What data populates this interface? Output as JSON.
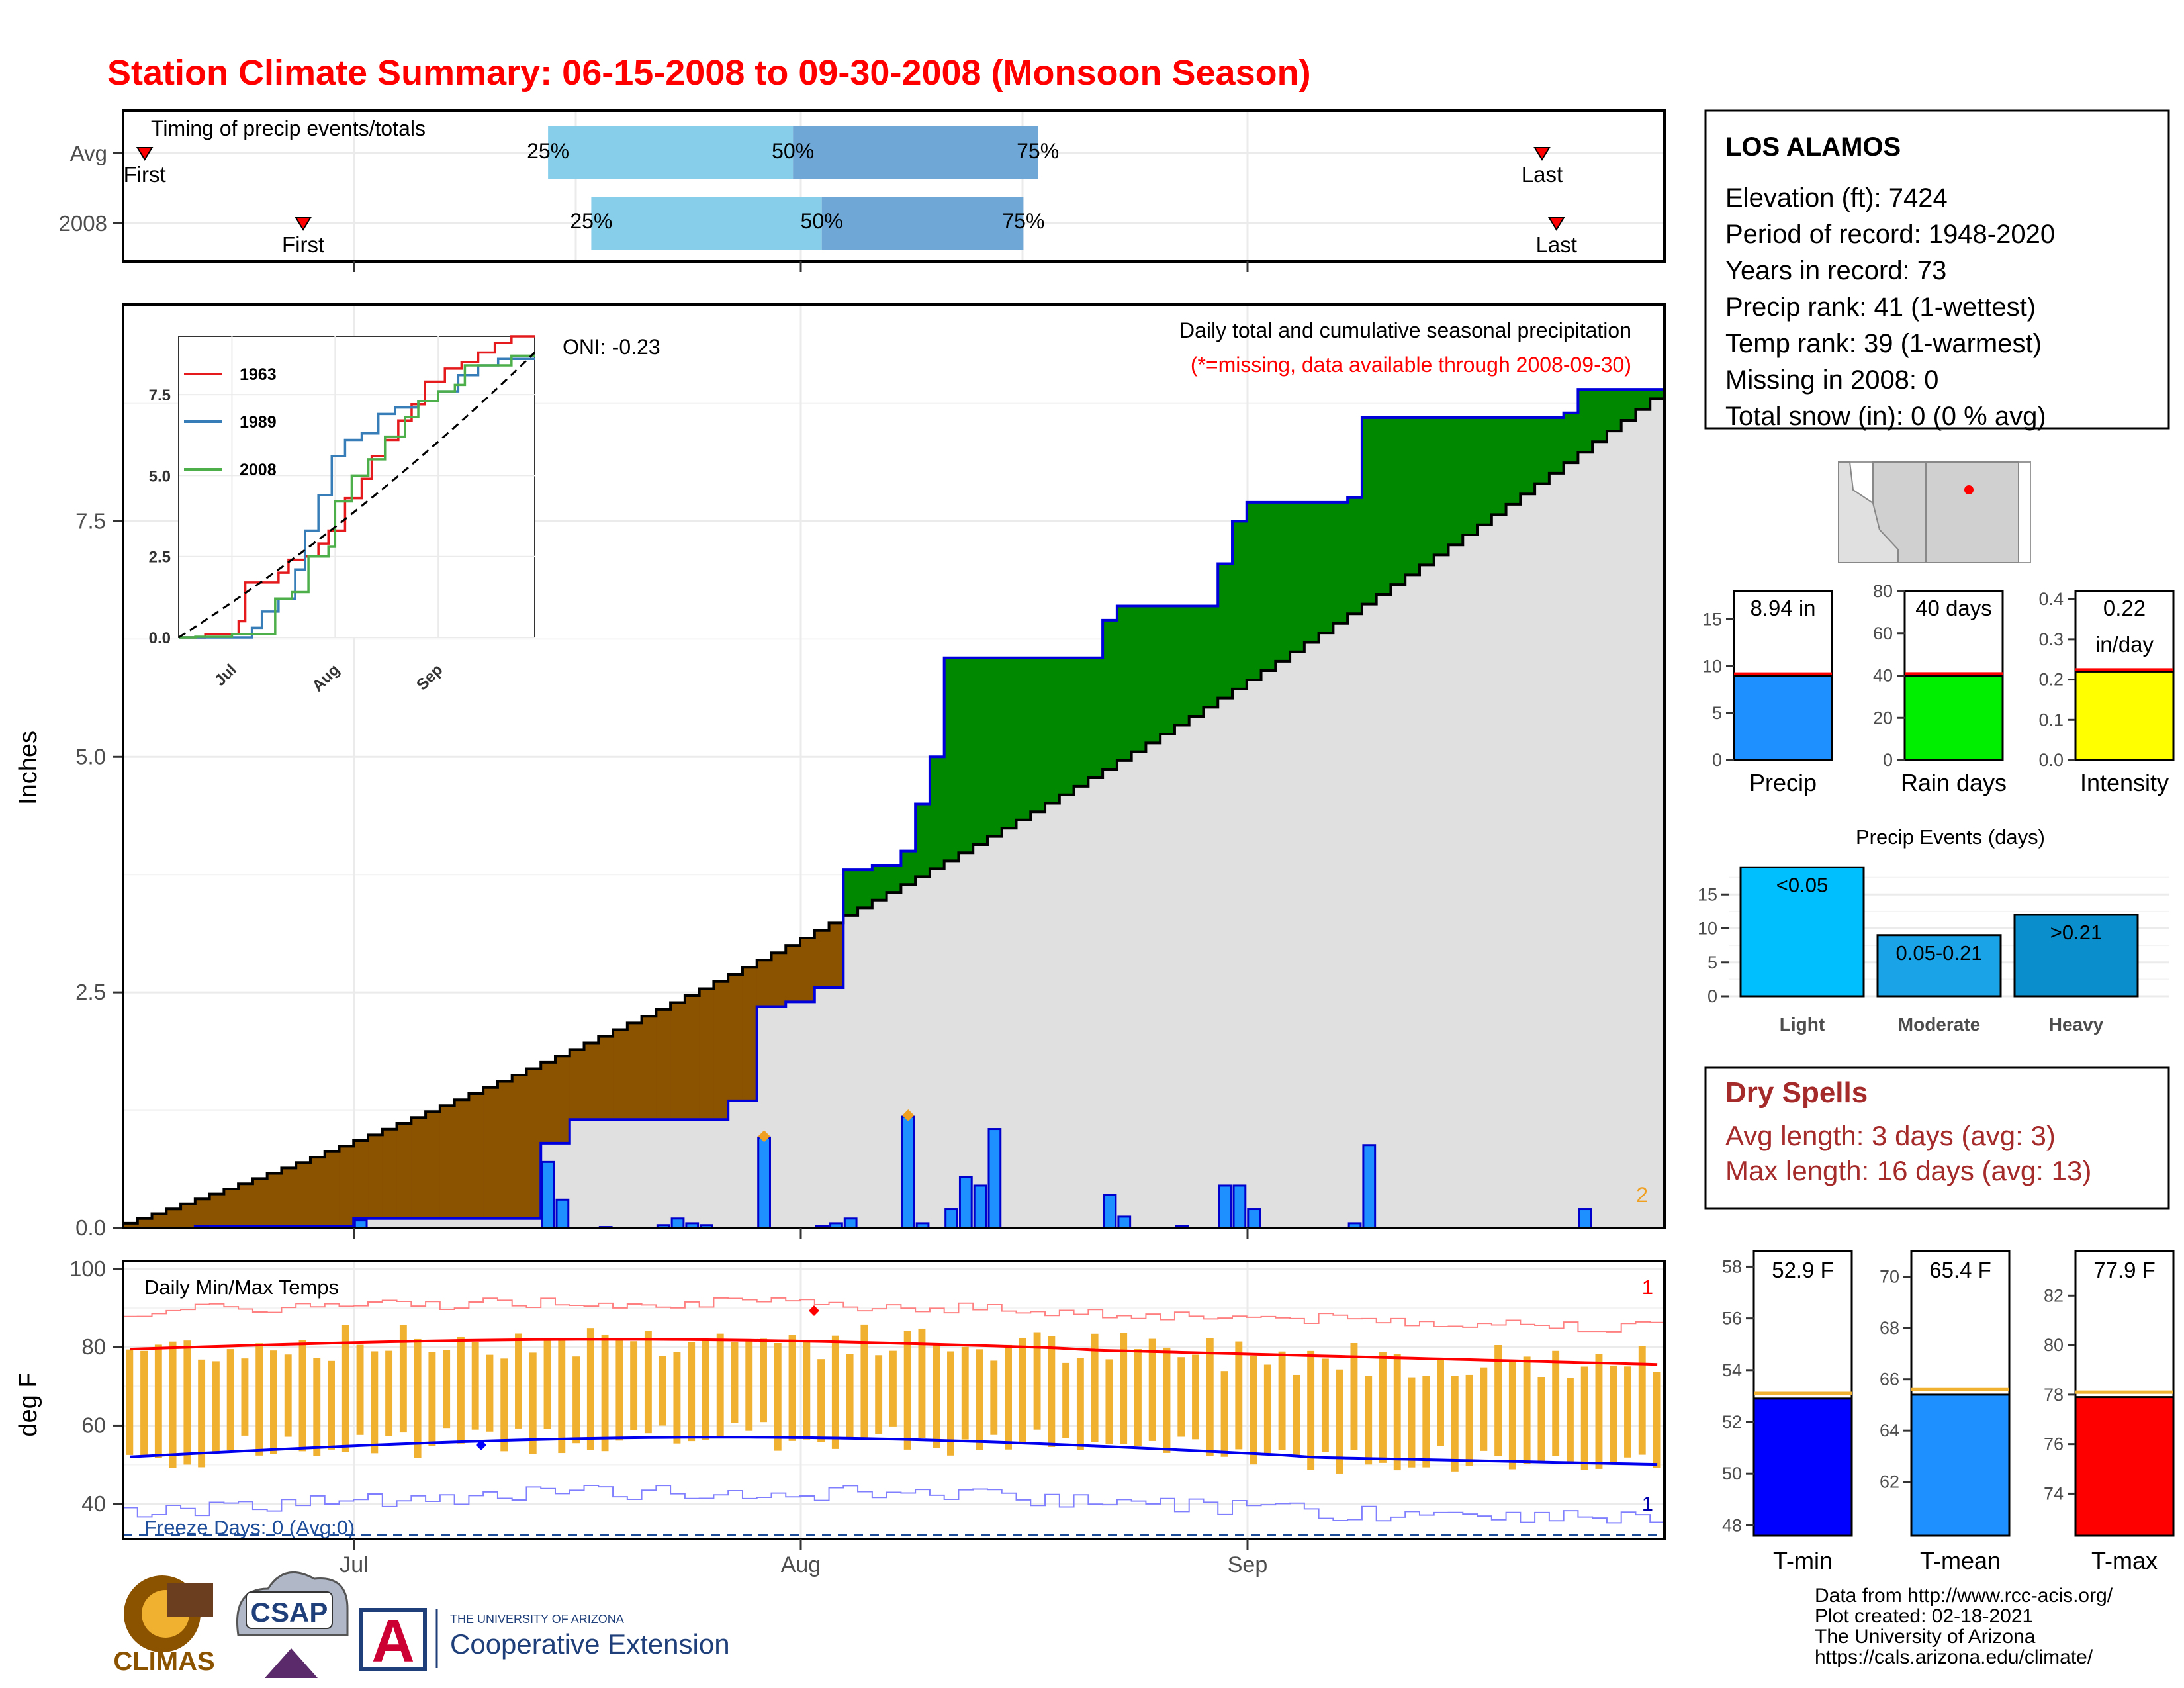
{
  "title": "Station Climate Summary: 06-15-2008 to 09-30-2008 (Monsoon Season)",
  "timing": {
    "label": "Timing of precip events/totals",
    "rows": [
      {
        "name": "Avg",
        "first_day": 1,
        "last_day": 98,
        "q25": 29,
        "q50": 46,
        "q75": 63
      },
      {
        "name": "2008",
        "first_day": 12,
        "last_day": 99,
        "q25": 32,
        "q50": 48,
        "q75": 62
      }
    ],
    "first_label": "First",
    "last_label": "Last",
    "q_labels": [
      "25%",
      "50%",
      "75%"
    ]
  },
  "main_chart": {
    "ylabel": "Inches",
    "yticks": [
      "0.0",
      "2.5",
      "5.0",
      "7.5"
    ],
    "xticks": [
      "Jul",
      "Aug",
      "Sep"
    ],
    "oni": "ONI: -0.23",
    "title": "Daily total and cumulative seasonal precipitation",
    "subtitle": "(*=missing, data available through 2008-09-30)",
    "missing_count": "2",
    "inset": {
      "yticks": [
        "0.0",
        "2.5",
        "5.0",
        "7.5"
      ],
      "xticks": [
        "Jul",
        "Aug",
        "Sep"
      ],
      "legend": [
        "1963",
        "1989",
        "2008"
      ],
      "colors": [
        "#e41a1c",
        "#377eb8",
        "#4daf4a"
      ]
    }
  },
  "temp_chart": {
    "ylabel": "deg F",
    "yticks": [
      "40",
      "60",
      "80",
      "100"
    ],
    "label": "Daily Min/Max Temps",
    "freeze": "Freeze Days: 0 (Avg:0)",
    "count_top": "1",
    "count_bottom": "1"
  },
  "station": {
    "name": "LOS ALAMOS",
    "lines": [
      "Elevation (ft): 7424",
      "Period of record: 1948-2020",
      "Years in record: 73",
      "Precip rank: 41 (1-wettest)",
      "Temp rank: 39 (1-warmest)",
      "Missing in 2008: 0",
      "Total snow (in): 0 (0 % avg)"
    ]
  },
  "small_bars": [
    {
      "label": "Precip",
      "value_text": "8.94 in",
      "value": 8.94,
      "avg": 9.2,
      "max": 18,
      "ticks": [
        "0",
        "5",
        "10",
        "15"
      ],
      "color": "#1e90ff"
    },
    {
      "label": "Rain days",
      "value_text": "40 days",
      "value": 40,
      "avg": 41,
      "max": 80,
      "ticks": [
        "0",
        "20",
        "40",
        "60",
        "80"
      ],
      "color": "#00ee00"
    },
    {
      "label": "Intensity",
      "value_text": "0.22",
      "value_text2": "in/day",
      "value": 0.22,
      "avg": 0.225,
      "max": 0.42,
      "ticks": [
        "0.0",
        "0.1",
        "0.2",
        "0.3",
        "0.4"
      ],
      "color": "#ffff00"
    }
  ],
  "precip_events": {
    "title": "Precip Events (days)",
    "categories": [
      "Light",
      "Moderate",
      "Heavy"
    ],
    "values": [
      19,
      9,
      12
    ],
    "labels": [
      "<0.05",
      "0.05-0.21",
      ">0.21"
    ],
    "ticks": [
      "0",
      "5",
      "10",
      "15"
    ],
    "colors": [
      "#00bfff",
      "#1aa3e6",
      "#0a8fcc"
    ]
  },
  "dry_spells": {
    "title": "Dry Spells",
    "avg": "Avg length: 3 days (avg: 3)",
    "max": "Max length: 16 days (avg: 13)"
  },
  "temp_bars": [
    {
      "label": "T-min",
      "value_text": "52.9 F",
      "value": 52.9,
      "avg": 53.1,
      "min": 47.6,
      "max": 58.6,
      "ticks": [
        "48",
        "50",
        "52",
        "54",
        "56",
        "58"
      ],
      "color": "#0000ff"
    },
    {
      "label": "T-mean",
      "value_text": "65.4 F",
      "value": 65.4,
      "avg": 65.6,
      "min": 59.9,
      "max": 71.0,
      "ticks": [
        "62",
        "64",
        "66",
        "68",
        "70"
      ],
      "color": "#1e90ff"
    },
    {
      "label": "T-max",
      "value_text": "77.9 F",
      "value": 77.9,
      "avg": 78.1,
      "min": 72.3,
      "max": 83.8,
      "ticks": [
        "74",
        "76",
        "78",
        "80",
        "82"
      ],
      "color": "#ff0000"
    }
  ],
  "footer": {
    "lines": [
      "Data from http://www.rcc-acis.org/",
      "Plot created: 02-18-2021",
      "The University of Arizona",
      "https://cals.arizona.edu/climate/"
    ],
    "logos": {
      "climas": "CLIMAS",
      "csap": "CSAP",
      "ua_small": "THE UNIVERSITY OF ARIZONA",
      "ua_big": "Cooperative Extension",
      "ua_letter": "A"
    }
  },
  "chart_data": {
    "type": "area",
    "title": "Daily total and cumulative seasonal precipitation",
    "ylabel": "Inches",
    "x_start": "2008-06-15",
    "x_end": "2008-09-30",
    "ylim": [
      0,
      9.8
    ],
    "cumulative_avg_end": 8.8,
    "cumulative_2008_steps": [
      {
        "date": "2008-06-15",
        "value": 0.0
      },
      {
        "date": "2008-06-20",
        "value": 0.02
      },
      {
        "date": "2008-07-01",
        "value": 0.1
      },
      {
        "date": "2008-07-14",
        "value": 0.9
      },
      {
        "date": "2008-07-16",
        "value": 1.15
      },
      {
        "date": "2008-07-27",
        "value": 1.35
      },
      {
        "date": "2008-07-29",
        "value": 2.35
      },
      {
        "date": "2008-07-31",
        "value": 2.4
      },
      {
        "date": "2008-08-02",
        "value": 2.55
      },
      {
        "date": "2008-08-04",
        "value": 3.8
      },
      {
        "date": "2008-08-06",
        "value": 3.85
      },
      {
        "date": "2008-08-08",
        "value": 4.0
      },
      {
        "date": "2008-08-09",
        "value": 4.5
      },
      {
        "date": "2008-08-10",
        "value": 5.0
      },
      {
        "date": "2008-08-11",
        "value": 6.05
      },
      {
        "date": "2008-08-14",
        "value": 6.05
      },
      {
        "date": "2008-08-19",
        "value": 6.05
      },
      {
        "date": "2008-08-22",
        "value": 6.45
      },
      {
        "date": "2008-08-23",
        "value": 6.6
      },
      {
        "date": "2008-08-25",
        "value": 6.6
      },
      {
        "date": "2008-08-30",
        "value": 7.05
      },
      {
        "date": "2008-08-31",
        "value": 7.5
      },
      {
        "date": "2008-09-01",
        "value": 7.7
      },
      {
        "date": "2008-09-08",
        "value": 7.75
      },
      {
        "date": "2008-09-09",
        "value": 8.6
      },
      {
        "date": "2008-09-20",
        "value": 8.6
      },
      {
        "date": "2008-09-23",
        "value": 8.65
      },
      {
        "date": "2008-09-24",
        "value": 8.9
      },
      {
        "date": "2008-09-30",
        "value": 8.94
      }
    ],
    "daily_precip": [
      {
        "date": "2008-06-20",
        "value": 0.02
      },
      {
        "date": "2008-07-01",
        "value": 0.08
      },
      {
        "date": "2008-07-14",
        "value": 0.7
      },
      {
        "date": "2008-07-15",
        "value": 0.3
      },
      {
        "date": "2008-07-18",
        "value": 0.01
      },
      {
        "date": "2008-07-22",
        "value": 0.03
      },
      {
        "date": "2008-07-23",
        "value": 0.1
      },
      {
        "date": "2008-07-24",
        "value": 0.05
      },
      {
        "date": "2008-07-25",
        "value": 0.03
      },
      {
        "date": "2008-07-29",
        "value": 0.96
      },
      {
        "date": "2008-08-02",
        "value": 0.02
      },
      {
        "date": "2008-08-03",
        "value": 0.05
      },
      {
        "date": "2008-08-04",
        "value": 0.1
      },
      {
        "date": "2008-08-08",
        "value": 1.18
      },
      {
        "date": "2008-08-09",
        "value": 0.05
      },
      {
        "date": "2008-08-11",
        "value": 0.2
      },
      {
        "date": "2008-08-12",
        "value": 0.54
      },
      {
        "date": "2008-08-13",
        "value": 0.45
      },
      {
        "date": "2008-08-14",
        "value": 1.05
      },
      {
        "date": "2008-08-22",
        "value": 0.35
      },
      {
        "date": "2008-08-23",
        "value": 0.12
      },
      {
        "date": "2008-08-27",
        "value": 0.02
      },
      {
        "date": "2008-08-30",
        "value": 0.45
      },
      {
        "date": "2008-08-31",
        "value": 0.45
      },
      {
        "date": "2008-09-01",
        "value": 0.2
      },
      {
        "date": "2008-09-08",
        "value": 0.05
      },
      {
        "date": "2008-09-09",
        "value": 0.88
      },
      {
        "date": "2008-09-24",
        "value": 0.2
      }
    ]
  }
}
